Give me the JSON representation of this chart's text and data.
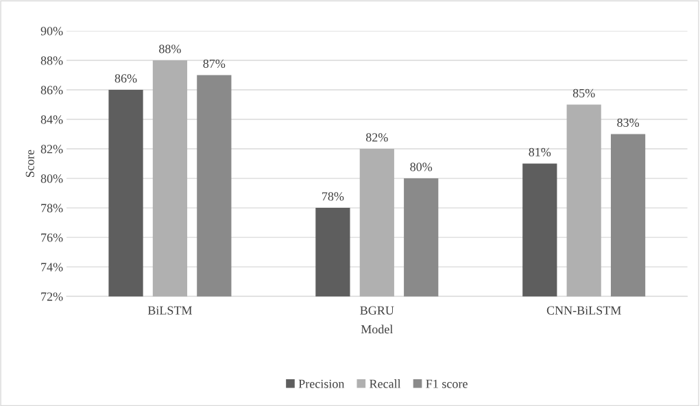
{
  "chart_data": {
    "type": "bar",
    "xlabel": "Model",
    "ylabel": "Score",
    "categories": [
      "BiLSTM",
      "BGRU",
      "CNN-BiLSTM"
    ],
    "series": [
      {
        "name": "Precision",
        "color": "#5e5e5e",
        "values": [
          86,
          78,
          81
        ],
        "value_labels": [
          "86%",
          "78%",
          "81%"
        ]
      },
      {
        "name": "Recall",
        "color": "#b0b0b0",
        "values": [
          88,
          82,
          85
        ],
        "value_labels": [
          "88%",
          "82%",
          "85%"
        ]
      },
      {
        "name": "F1 score",
        "color": "#8a8a8a",
        "values": [
          87,
          80,
          83
        ],
        "value_labels": [
          "87%",
          "80%",
          "83%"
        ]
      }
    ],
    "ylim": [
      72,
      90
    ],
    "yticks": [
      {
        "value": 72,
        "label": "72%"
      },
      {
        "value": 74,
        "label": "74%"
      },
      {
        "value": 76,
        "label": "76%"
      },
      {
        "value": 78,
        "label": "78%"
      },
      {
        "value": 80,
        "label": "80%"
      },
      {
        "value": 82,
        "label": "82%"
      },
      {
        "value": 84,
        "label": "84%"
      },
      {
        "value": 86,
        "label": "86%"
      },
      {
        "value": 88,
        "label": "88%"
      },
      {
        "value": 90,
        "label": "90%"
      }
    ],
    "grid": "y",
    "legend": "bottom"
  }
}
